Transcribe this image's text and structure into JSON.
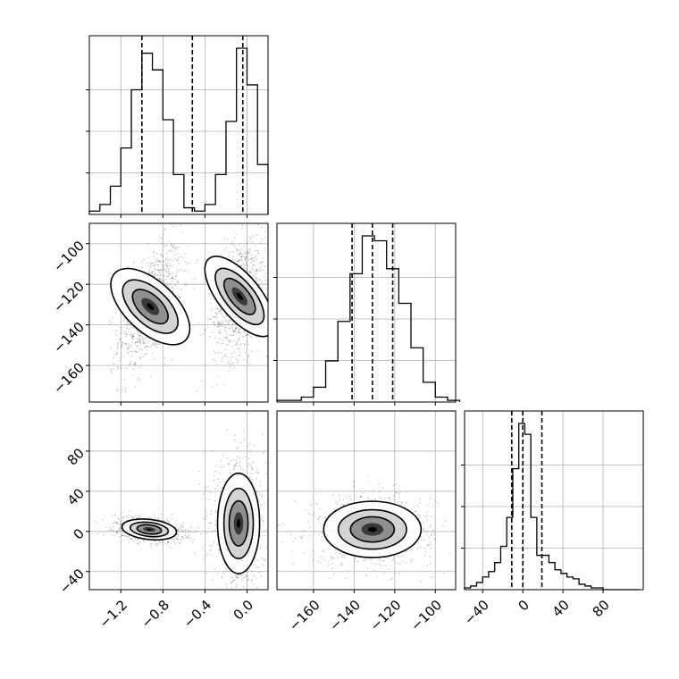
{
  "chart_data": {
    "type": "corner",
    "grid": true,
    "parameters": [
      {
        "range": [
          -1.5,
          0.2
        ],
        "ticks": [
          -1.2,
          -0.8,
          -0.4,
          0.0
        ],
        "tick_labels": [
          "−1.2",
          "−0.8",
          "−0.4",
          "0.0"
        ],
        "quantiles": [
          -1.0,
          -0.52,
          -0.04
        ]
      },
      {
        "range": [
          -178,
          -90
        ],
        "ticks": [
          -160,
          -140,
          -120,
          -100
        ],
        "tick_labels": [
          "−160",
          "−140",
          "−120",
          "−100"
        ],
        "quantiles": [
          -141,
          -131,
          -121
        ]
      },
      {
        "range": [
          -58,
          120
        ],
        "ticks": [
          -40,
          0,
          40,
          80
        ],
        "tick_labels": [
          "−40",
          "0",
          "40",
          "80"
        ],
        "quantiles": [
          -11,
          0,
          19
        ]
      }
    ],
    "histograms": [
      {
        "param": 0,
        "bin_edges": [
          -1.5,
          -1.4,
          -1.3,
          -1.2,
          -1.1,
          -1.0,
          -0.9,
          -0.8,
          -0.7,
          -0.6,
          -0.5,
          -0.4,
          -0.3,
          -0.2,
          -0.1,
          0.0,
          0.1,
          0.2
        ],
        "counts": [
          2,
          6,
          17,
          40,
          75,
          97,
          87,
          57,
          24,
          4,
          2,
          6,
          24,
          56,
          100,
          78,
          30
        ]
      },
      {
        "param": 1,
        "bin_edges": [
          -178,
          -172,
          -166,
          -160,
          -154,
          -148,
          -142,
          -136,
          -130,
          -124,
          -118,
          -112,
          -106,
          -100,
          -94,
          -88
        ],
        "counts": [
          1,
          1,
          3,
          9,
          25,
          49,
          78,
          101,
          98,
          81,
          60,
          33,
          12,
          3,
          1
        ]
      },
      {
        "param": 2,
        "bin_edges": [
          -58,
          -52,
          -46,
          -40,
          -34,
          -28,
          -22,
          -16,
          -10,
          -4,
          2,
          8,
          14,
          20,
          26,
          32,
          38,
          44,
          50,
          56,
          62,
          68,
          74,
          80,
          86,
          92,
          98,
          104,
          110,
          116
        ],
        "counts": [
          1,
          2,
          4,
          7,
          10,
          15,
          24,
          40,
          67,
          92,
          86,
          40,
          19,
          19,
          15,
          11,
          9,
          7,
          6,
          3,
          2,
          1,
          1,
          0,
          0,
          0,
          0,
          0,
          0
        ]
      }
    ],
    "pairs": [
      {
        "x_param": 0,
        "y_param": 1,
        "clusters": [
          {
            "mean": [
              -0.92,
              -131
            ],
            "sd": [
              0.12,
              12
            ],
            "rho": 0.55
          },
          {
            "mean": [
              -0.07,
              -126
            ],
            "sd": [
              0.1,
              12
            ],
            "rho": 0.35
          }
        ]
      },
      {
        "x_param": 0,
        "y_param": 2,
        "clusters": [
          {
            "mean": [
              -0.93,
              2
            ],
            "sd": [
              0.13,
              5
            ],
            "rho": -0.3
          },
          {
            "mean": [
              -0.08,
              8
            ],
            "sd": [
              0.1,
              25
            ],
            "rho": 0.0
          }
        ]
      },
      {
        "x_param": 1,
        "y_param": 2,
        "clusters": [
          {
            "mean": [
              -131,
              2
            ],
            "sd": [
              12,
              14
            ],
            "rho": 0.0
          }
        ]
      }
    ]
  }
}
